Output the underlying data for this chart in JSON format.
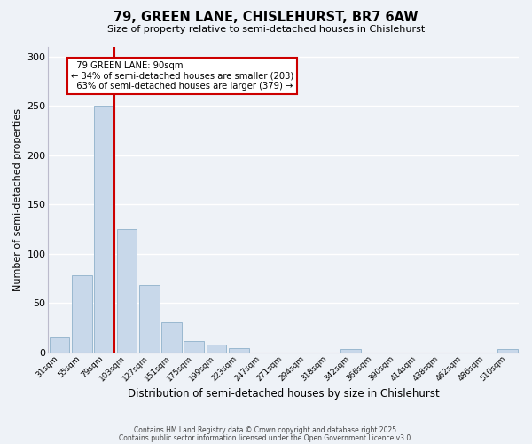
{
  "title": "79, GREEN LANE, CHISLEHURST, BR7 6AW",
  "subtitle": "Size of property relative to semi-detached houses in Chislehurst",
  "xlabel": "Distribution of semi-detached houses by size in Chislehurst",
  "ylabel": "Number of semi-detached properties",
  "bar_color": "#c8d8ea",
  "bar_edge_color": "#9ab8d0",
  "background_color": "#eef2f7",
  "grid_color": "#ffffff",
  "categories": [
    "31sqm",
    "55sqm",
    "79sqm",
    "103sqm",
    "127sqm",
    "151sqm",
    "175sqm",
    "199sqm",
    "223sqm",
    "247sqm",
    "271sqm",
    "294sqm",
    "318sqm",
    "342sqm",
    "366sqm",
    "390sqm",
    "414sqm",
    "438sqm",
    "462sqm",
    "486sqm",
    "510sqm"
  ],
  "values": [
    15,
    78,
    250,
    125,
    68,
    30,
    11,
    8,
    4,
    0,
    0,
    0,
    0,
    3,
    0,
    0,
    0,
    0,
    0,
    0,
    3
  ],
  "property_label": "79 GREEN LANE: 90sqm",
  "pct_smaller": 34,
  "pct_smaller_count": 203,
  "pct_larger": 63,
  "pct_larger_count": 379,
  "ylim": [
    0,
    310
  ],
  "yticks": [
    0,
    50,
    100,
    150,
    200,
    250,
    300
  ],
  "annotation_box_color": "#ffffff",
  "annotation_box_edge": "#cc0000",
  "vline_color": "#cc0000",
  "footer1": "Contains HM Land Registry data © Crown copyright and database right 2025.",
  "footer2": "Contains public sector information licensed under the Open Government Licence v3.0."
}
